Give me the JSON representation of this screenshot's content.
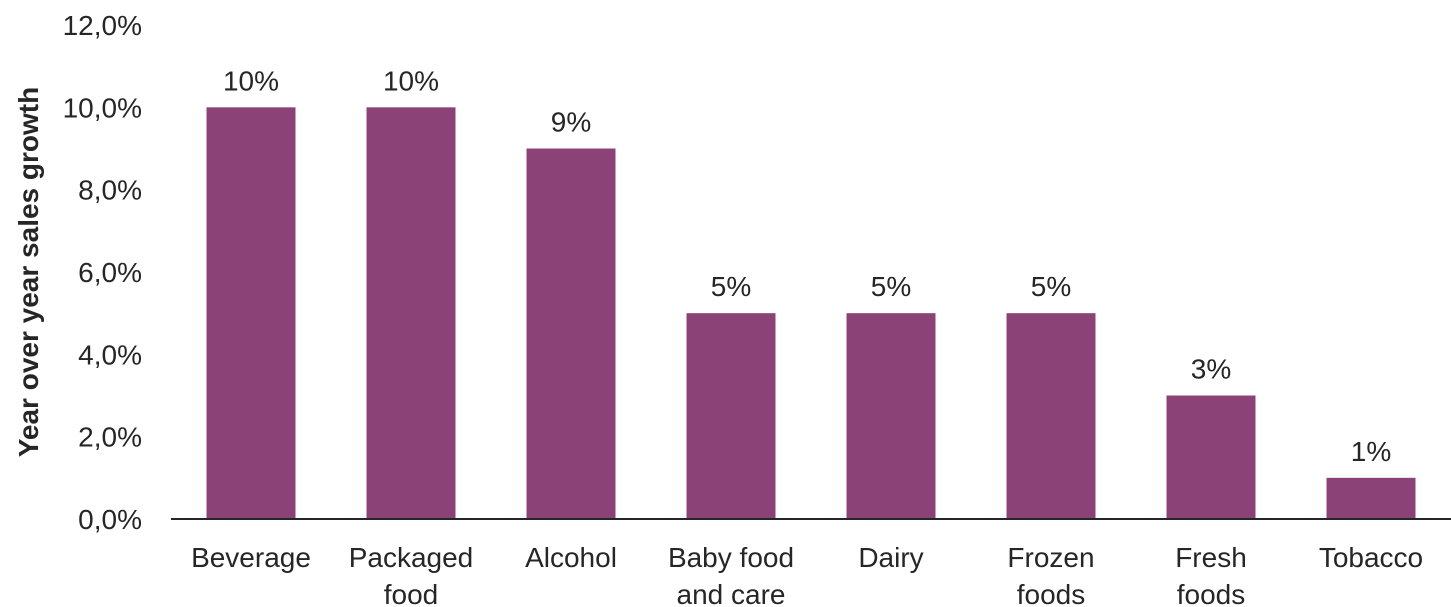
{
  "chart_data": {
    "type": "bar",
    "title": "",
    "xlabel": "",
    "ylabel": "Year over year sales growth",
    "categories": [
      "Beverage",
      "Packaged food",
      "Alcohol",
      "Baby food and care",
      "Dairy",
      "Frozen foods",
      "Fresh foods",
      "Tobacco"
    ],
    "category_lines": [
      [
        "Beverage"
      ],
      [
        "Packaged",
        "food"
      ],
      [
        "Alcohol"
      ],
      [
        "Baby food",
        "and care"
      ],
      [
        "Dairy"
      ],
      [
        "Frozen",
        "foods"
      ],
      [
        "Fresh",
        "foods"
      ],
      [
        "Tobacco"
      ]
    ],
    "values": [
      10,
      10,
      9,
      5,
      5,
      5,
      3,
      1
    ],
    "data_labels": [
      "10%",
      "10%",
      "9%",
      "5%",
      "5%",
      "5%",
      "3%",
      "1%"
    ],
    "ylim": [
      0,
      12
    ],
    "yticks": [
      0,
      2,
      4,
      6,
      8,
      10,
      12
    ],
    "ytick_labels": [
      "0,0%",
      "2,0%",
      "4,0%",
      "6,0%",
      "8,0%",
      "10,0%",
      "12,0%"
    ],
    "grid": false,
    "legend": "none",
    "bar_color": "#8b4377",
    "axis_color": "#262626"
  }
}
